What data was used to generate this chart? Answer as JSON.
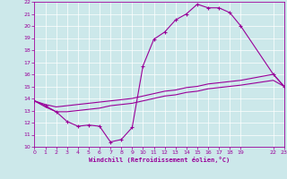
{
  "bg_color": "#cce8ea",
  "line_color": "#990099",
  "grid_color": "#ffffff",
  "xlim": [
    0,
    23
  ],
  "ylim": [
    10,
    22
  ],
  "xtick_vals": [
    0,
    1,
    2,
    3,
    4,
    5,
    6,
    7,
    8,
    9,
    10,
    11,
    12,
    13,
    14,
    15,
    16,
    17,
    18,
    19,
    22,
    23
  ],
  "xtick_labels": [
    "0",
    "1",
    "2",
    "3",
    "4",
    "5",
    "6",
    "7",
    "8",
    "9",
    "10",
    "11",
    "12",
    "13",
    "14",
    "15",
    "16",
    "17",
    "18",
    "19",
    "22",
    "23"
  ],
  "ytick_vals": [
    10,
    11,
    12,
    13,
    14,
    15,
    16,
    17,
    18,
    19,
    20,
    21,
    22
  ],
  "xlabel": "Windchill (Refroidissement éolien,°C)",
  "curve1_x": [
    0,
    1,
    2,
    3,
    4,
    5,
    6,
    7,
    8,
    9,
    10,
    11,
    12,
    13,
    14,
    15,
    16,
    17,
    18,
    19,
    22,
    23
  ],
  "curve1_y": [
    13.8,
    13.4,
    12.9,
    12.1,
    11.7,
    11.8,
    11.7,
    10.4,
    10.6,
    11.6,
    16.7,
    18.9,
    19.5,
    20.5,
    21.0,
    21.8,
    21.5,
    21.5,
    21.1,
    20.0,
    16.0,
    15.0
  ],
  "curve2_x": [
    0,
    1,
    2,
    3,
    4,
    5,
    6,
    7,
    8,
    9,
    10,
    11,
    12,
    13,
    14,
    15,
    16,
    17,
    18,
    19,
    22,
    23
  ],
  "curve2_y": [
    13.8,
    13.5,
    13.3,
    13.4,
    13.5,
    13.6,
    13.7,
    13.8,
    13.9,
    14.0,
    14.2,
    14.4,
    14.6,
    14.7,
    14.9,
    15.0,
    15.2,
    15.3,
    15.4,
    15.5,
    16.0,
    15.0
  ],
  "curve3_x": [
    0,
    1,
    2,
    3,
    4,
    5,
    6,
    7,
    8,
    9,
    10,
    11,
    12,
    13,
    14,
    15,
    16,
    17,
    18,
    19,
    22,
    23
  ],
  "curve3_y": [
    13.8,
    13.3,
    12.9,
    12.9,
    13.0,
    13.1,
    13.2,
    13.4,
    13.5,
    13.6,
    13.8,
    14.0,
    14.2,
    14.3,
    14.5,
    14.6,
    14.8,
    14.9,
    15.0,
    15.1,
    15.5,
    15.0
  ]
}
